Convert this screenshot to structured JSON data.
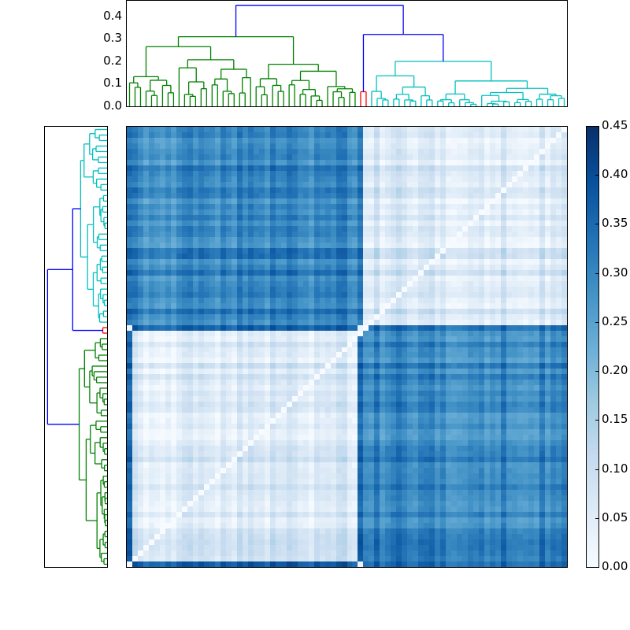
{
  "chart_data": {
    "type": "heatmap",
    "title": "",
    "description": "Hierarchically clustered distance/similarity matrix with row and column dendrograms",
    "matrix_size": [
      80,
      80
    ],
    "cluster_boundary_index": 42,
    "clusters": [
      {
        "name": "green",
        "color": "#008000",
        "size": 42
      },
      {
        "name": "red",
        "color": "#ff0000",
        "size": 2
      },
      {
        "name": "cyan",
        "color": "#00bfbf",
        "size": 36
      }
    ],
    "block_means": {
      "green_green": 0.06,
      "cyan_cyan": 0.07,
      "green_cyan": 0.3,
      "red_cyan": 0.34,
      "red_green": 0.36
    },
    "top_dendrogram": {
      "ylim": [
        0.0,
        0.47
      ],
      "yticks": [
        "0.0",
        "0.1",
        "0.2",
        "0.3",
        "0.4"
      ],
      "root_height": 0.45,
      "merge_heights": {
        "green_root": 0.31,
        "cyan_red_merge": 0.32,
        "cyan_root": 0.2,
        "red_pair": 0.065
      }
    },
    "left_dendrogram": {
      "orientation": "right",
      "root_height": 0.45
    },
    "colorbar": {
      "cmap": "Blues",
      "vmin": 0.0,
      "vmax": 0.45,
      "ticks": [
        "0.00",
        "0.05",
        "0.10",
        "0.15",
        "0.20",
        "0.25",
        "0.30",
        "0.35",
        "0.40",
        "0.45"
      ]
    },
    "colors": {
      "link_above_threshold": "#0000ff",
      "green": "#008000",
      "red": "#ff0000",
      "cyan": "#00bfbf"
    }
  }
}
